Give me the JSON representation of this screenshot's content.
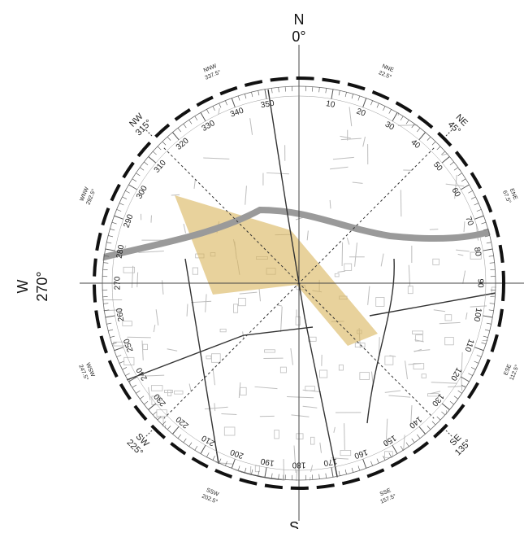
{
  "north": {
    "letter": "N",
    "deg": "0°"
  },
  "west": {
    "letter": "W",
    "deg": "270°"
  },
  "south": {
    "letter": "S"
  },
  "intercardinals": [
    {
      "name": "NNE",
      "deg": "22.5°",
      "angle": 22.5
    },
    {
      "name": "NE",
      "deg": "45°",
      "angle": 45
    },
    {
      "name": "ENE",
      "deg": "67.5°",
      "angle": 67.5
    },
    {
      "name": "ESE",
      "deg": "112.5°",
      "angle": 112.5
    },
    {
      "name": "SE",
      "deg": "135°",
      "angle": 135
    },
    {
      "name": "SSE",
      "deg": "157.5°",
      "angle": 157.5
    },
    {
      "name": "SSW",
      "deg": "202.5°",
      "angle": 202.5
    },
    {
      "name": "SW",
      "deg": "225°",
      "angle": 225
    },
    {
      "name": "WSW",
      "deg": "247.5°",
      "angle": 247.5
    },
    {
      "name": "WNW",
      "deg": "292.5°",
      "angle": 292.5
    },
    {
      "name": "NW",
      "deg": "315°",
      "angle": 315
    },
    {
      "name": "NNW",
      "deg": "337.5°",
      "angle": 337.5
    }
  ],
  "scale_labels": [
    "10",
    "20",
    "30",
    "40",
    "50",
    "60",
    "70",
    "80",
    "90",
    "100",
    "110",
    "120",
    "130",
    "140",
    "150",
    "160",
    "170",
    "180",
    "190",
    "200",
    "210",
    "220",
    "230",
    "240",
    "250",
    "260",
    "270",
    "280",
    "290",
    "300",
    "310",
    "320",
    "330",
    "340",
    "350"
  ],
  "colors": {
    "wedge": "#d9b45a",
    "road": "#9a9a9a",
    "streets": "#bdbdbd",
    "ring": "#111111"
  }
}
